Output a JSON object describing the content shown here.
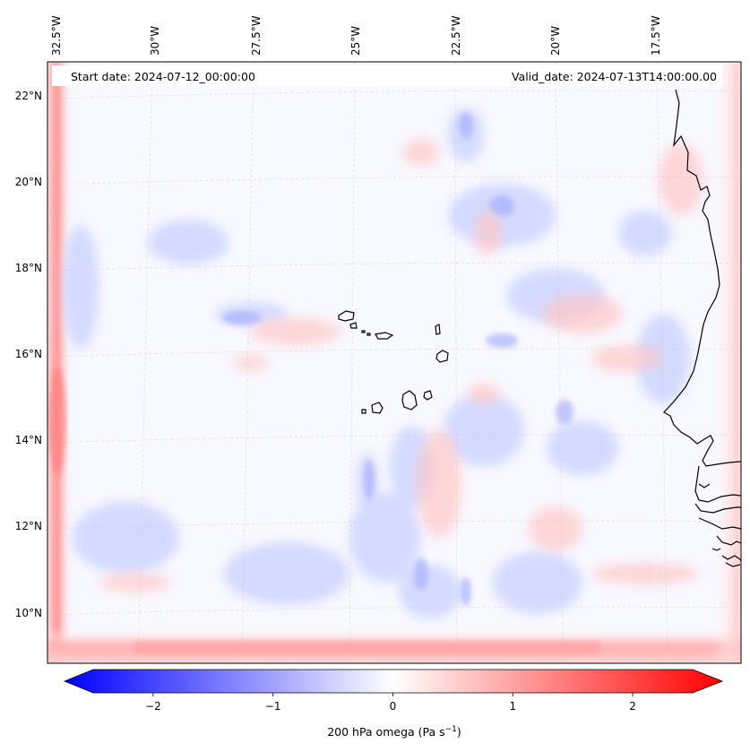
{
  "map": {
    "start_date_label": "Start date: 2024-07-12_00:00:00",
    "valid_date_label": "Valid_date: 2024-07-13T14:00:00.00",
    "lon_labels": [
      "32.5°W",
      "30°W",
      "27.5°W",
      "25°W",
      "22.5°W",
      "20°W",
      "17.5°W"
    ],
    "lat_labels": [
      "22°N",
      "20°N",
      "18°N",
      "16°N",
      "14°N",
      "12°N",
      "10°N"
    ],
    "field": "200 hPa omega",
    "features": [
      "Cabo Verde islands",
      "West African coastline",
      "Canary/Senegal coast"
    ]
  },
  "colorbar": {
    "label_prefix": "200 hPa omega (Pa s",
    "label_exp": "−1",
    "label_suffix": ")",
    "ticks": [
      "−2",
      "−1",
      "0",
      "1",
      "2"
    ],
    "tick_values": [
      -2,
      -1,
      0,
      1,
      2
    ],
    "range": [
      -2.5,
      2.5
    ],
    "colormap": "bwr",
    "colors": {
      "low": "#0000ff",
      "mid": "#ffffff",
      "high": "#ff0000"
    }
  }
}
